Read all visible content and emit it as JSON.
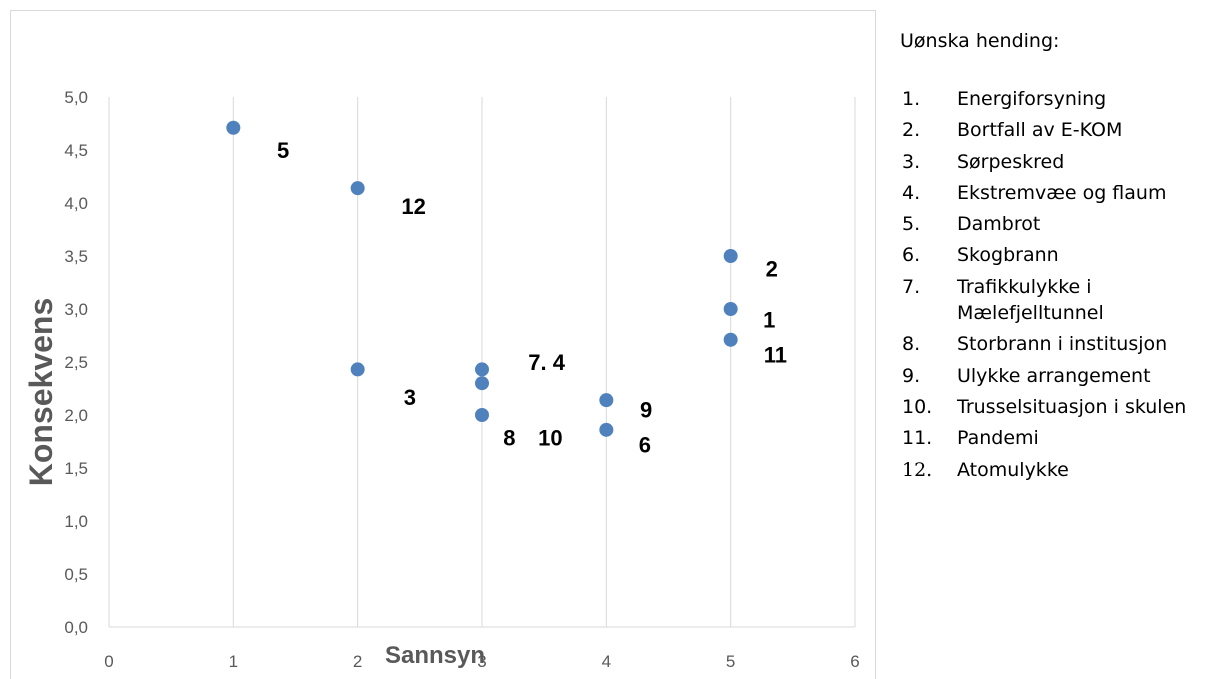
{
  "chart_data": {
    "type": "scatter",
    "xlabel": "Sannsyn",
    "ylabel": "Konsekvens",
    "xlim": [
      0,
      6
    ],
    "ylim": [
      0,
      5
    ],
    "x_ticks": [
      "0",
      "1",
      "2",
      "3",
      "4",
      "5",
      "6"
    ],
    "y_ticks": [
      "0,0",
      "0,5",
      "1,0",
      "1,5",
      "2,0",
      "2,5",
      "3,0",
      "3,5",
      "4,0",
      "4,5",
      "5,0"
    ],
    "grid": "vertical",
    "marker_color": "#4F81BD",
    "points": [
      {
        "x": 1,
        "y": 4.71
      },
      {
        "x": 2,
        "y": 4.14
      },
      {
        "x": 2,
        "y": 2.43
      },
      {
        "x": 3,
        "y": 2.43
      },
      {
        "x": 3,
        "y": 2.3
      },
      {
        "x": 3,
        "y": 2.0
      },
      {
        "x": 4,
        "y": 2.14
      },
      {
        "x": 4,
        "y": 1.86
      },
      {
        "x": 5,
        "y": 3.5
      },
      {
        "x": 5,
        "y": 3.0
      },
      {
        "x": 5,
        "y": 2.71
      }
    ],
    "annotations": [
      {
        "text": "5",
        "x": 1.4,
        "y": 4.5
      },
      {
        "text": "12",
        "x": 2.45,
        "y": 3.97
      },
      {
        "text": "3",
        "x": 2.42,
        "y": 2.17
      },
      {
        "text": "7. 4",
        "x": 3.52,
        "y": 2.5
      },
      {
        "text": "8",
        "x": 3.22,
        "y": 1.79
      },
      {
        "text": "10",
        "x": 3.55,
        "y": 1.79
      },
      {
        "text": "9",
        "x": 4.32,
        "y": 2.05
      },
      {
        "text": "6",
        "x": 4.31,
        "y": 1.72
      },
      {
        "text": "2",
        "x": 5.33,
        "y": 3.38
      },
      {
        "text": "1",
        "x": 5.31,
        "y": 2.9
      },
      {
        "text": "11",
        "x": 5.36,
        "y": 2.57
      }
    ]
  },
  "legend": {
    "title": "Uønska hending:",
    "items": [
      {
        "num": "1.",
        "text": "Energiforsyning"
      },
      {
        "num": "2.",
        "text": "Bortfall av E-KOM"
      },
      {
        "num": "3.",
        "text": "Sørpeskred"
      },
      {
        "num": "4.",
        "text": "Ekstremvæe og flaum"
      },
      {
        "num": "5.",
        "text": "Dambrot"
      },
      {
        "num": "6.",
        "text": "Skogbrann"
      },
      {
        "num": "7.",
        "text": "Trafikkulykke i Mælefjelltunnel"
      },
      {
        "num": "8.",
        "text": "Storbrann i institusjon"
      },
      {
        "num": "9.",
        "text": "Ulykke arrangement"
      },
      {
        "num": "10.",
        "text": "Trusselsituasjon i skulen"
      },
      {
        "num": "11.",
        "text": "Pandemi"
      },
      {
        "num": "12.",
        "text": "Atomulykke",
        "serif": true
      }
    ]
  }
}
